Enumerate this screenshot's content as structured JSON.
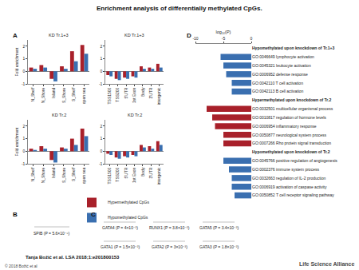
{
  "title": "Enrichment analysis of differentially methylated CpGs.",
  "panel_labels": [
    "A",
    "B",
    "C",
    "D"
  ],
  "chart_data": [
    {
      "type": "bar",
      "title": "KD Tr.1+3",
      "ylabel": "Fold enrichment",
      "categories": [
        "N_Shelf",
        "N_Shore",
        "Island",
        "S_Shore",
        "S_Shelf",
        "open sea"
      ],
      "series": [
        {
          "name": "Hypermethylated CpGs",
          "color": "#a8202a",
          "values": [
            0.3,
            0.5,
            -0.6,
            0.4,
            1.6,
            2.1
          ]
        },
        {
          "name": "Hypomethylated CpGs",
          "color": "#3a6fb0",
          "values": [
            0.2,
            0.3,
            -0.8,
            0.2,
            0.8,
            1.4
          ]
        }
      ],
      "ylim": [
        -1,
        2.5
      ],
      "yticks": [
        -1,
        0,
        1,
        2
      ]
    },
    {
      "type": "bar",
      "title": "KD Tr.1+3",
      "categories": [
        "TSS1500",
        "TSS200",
        "5'UTR",
        "1st Exon",
        "Body",
        "3'UTR",
        "intergenic"
      ],
      "series": [
        {
          "name": "Hypermethylated CpGs",
          "color": "#a8202a",
          "values": [
            -0.3,
            -0.6,
            -0.5,
            -0.4,
            0.4,
            0.3,
            0.6
          ]
        },
        {
          "name": "Hypomethylated CpGs",
          "color": "#3a6fb0",
          "values": [
            -0.4,
            -0.7,
            -0.6,
            -0.5,
            0.2,
            0.2,
            0.3
          ]
        }
      ],
      "ylim": [
        -1,
        2.5
      ],
      "yticks": [
        -1,
        0,
        1,
        2
      ]
    },
    {
      "type": "bar",
      "title": "KD Tr.2",
      "ylabel": "Fold enrichment",
      "categories": [
        "N_Shelf",
        "N_Shore",
        "Island",
        "S_Shore",
        "S_Shelf",
        "open sea"
      ],
      "series": [
        {
          "name": "Hypermethylated CpGs",
          "color": "#a8202a",
          "values": [
            0.2,
            0.4,
            -0.7,
            0.3,
            1.0,
            1.8
          ]
        },
        {
          "name": "Hypomethylated CpGs",
          "color": "#3a6fb0",
          "values": [
            0.1,
            0.2,
            -0.9,
            0.2,
            0.5,
            1.2
          ]
        }
      ],
      "ylim": [
        -1,
        2.5
      ],
      "yticks": [
        -1,
        0,
        1,
        2
      ]
    },
    {
      "type": "bar",
      "title": "KD Tr.2",
      "categories": [
        "TSS1500",
        "TSS200",
        "5'UTR",
        "1st Exon",
        "Body",
        "3'UTR",
        "intergenic"
      ],
      "series": [
        {
          "name": "Hypermethylated CpGs",
          "color": "#a8202a",
          "values": [
            -0.2,
            -0.5,
            -0.4,
            -0.3,
            0.5,
            0.4,
            0.8
          ]
        },
        {
          "name": "Hypomethylated CpGs",
          "color": "#3a6fb0",
          "values": [
            -0.3,
            -0.6,
            -0.5,
            -0.4,
            0.3,
            0.2,
            0.5
          ]
        }
      ],
      "ylim": [
        -1,
        2.5
      ],
      "yticks": [
        -1,
        0,
        1,
        2
      ]
    },
    {
      "type": "bar",
      "orientation": "horizontal",
      "xlabel": "log₁₀(P)",
      "xlim": [
        -10,
        0
      ],
      "xticks": [
        -10,
        -5,
        0
      ],
      "groups": [
        {
          "title": "Hypomethylated upon knockdown of Tr.1+3",
          "color": "#3a6fb0",
          "categories": [
            "GO:0046649 lymphocyte activation",
            "GO:0045321 leukocyte activation",
            "GO:0006952 defense response",
            "GO:0042110 T cell activation",
            "GO:0042113 B cell activation"
          ],
          "values": [
            -5.5,
            -5,
            -4.5,
            -3.5,
            -3.5
          ]
        },
        {
          "title": "Hypermethylated upon knockdown of Tr.2",
          "color": "#a8202a",
          "categories": [
            "GO:0032501 multicellular organismal process",
            "GO:0010817 regulation of hormone levels",
            "GO:0006954 inflammatory response",
            "GO:0050877 neurological system process",
            "GO:0007266 Rho protein signal transduction"
          ],
          "values": [
            -8,
            -7,
            -6.5,
            -5,
            -5
          ]
        },
        {
          "title": "Hypomethylated upon knockdown of Tr.2",
          "color": "#3a6fb0",
          "categories": [
            "GO:0045766 positive regulation of angiogenesis",
            "GO:0002376 immune system process",
            "GO:0032663 regulation of IL-2 production",
            "GO:0006919 activation of caspase activity",
            "GO:0050852 T cell receptor signaling pathway"
          ],
          "values": [
            -5,
            -4,
            -3.5,
            -3.5,
            -3
          ]
        }
      ]
    }
  ],
  "motifs": {
    "B": [
      "SPIB (P = 5.6×10⁻⁵)"
    ],
    "C": [
      [
        "GATA4 (P = 4×10⁻³)",
        "RUNX1 (P = 3.8×10⁻³)",
        "GATA5 (P = 3.4×10⁻³)"
      ],
      [
        "GATA1 (P = 1.5×10⁻³)",
        "GATA2 (P = 3×10⁻³)",
        "GATA3 (P = 1.8×10⁻³)"
      ]
    ]
  },
  "footer": {
    "citation": "Tanja Božić et al. LSA 2018;1:e201800153",
    "copyright": "© 2018 Božić et al",
    "journal": "Life Science Alliance"
  }
}
